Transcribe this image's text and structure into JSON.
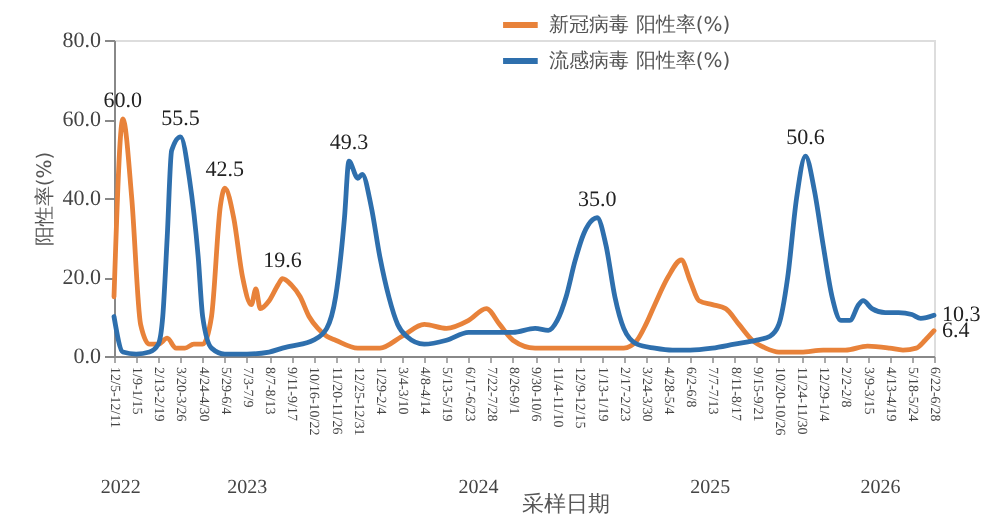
{
  "chart_data": {
    "type": "line",
    "xlabel": "采样日期",
    "ylabel": "阳性率(%)",
    "series": [
      {
        "name": "新冠病毒 阳性率(%)",
        "color": "#e8823a",
        "x": [
          "2022-12-05",
          "2022-12-19",
          "2023-01-02",
          "2023-01-16",
          "2023-01-30",
          "2023-02-13",
          "2023-02-27",
          "2023-03-13",
          "2023-03-27",
          "2023-04-10",
          "2023-04-24",
          "2023-05-08",
          "2023-05-22",
          "2023-05-29",
          "2023-06-12",
          "2023-06-26",
          "2023-07-10",
          "2023-07-17",
          "2023-07-24",
          "2023-08-07",
          "2023-08-21",
          "2023-08-28",
          "2023-09-11",
          "2023-09-25",
          "2023-10-09",
          "2023-10-23",
          "2023-11-06",
          "2023-11-20",
          "2023-12-25",
          "2024-01-29",
          "2024-03-04",
          "2024-04-08",
          "2024-05-13",
          "2024-06-17",
          "2024-07-15",
          "2024-08-05",
          "2024-08-26",
          "2024-09-30",
          "2024-11-04",
          "2024-12-09",
          "2025-01-13",
          "2025-02-17",
          "2025-03-10",
          "2025-03-24",
          "2025-04-07",
          "2025-04-28",
          "2025-05-19",
          "2025-06-02",
          "2025-06-16",
          "2025-07-07",
          "2025-07-28",
          "2025-08-18",
          "2025-09-08",
          "2025-09-29",
          "2025-10-20",
          "2025-11-24",
          "2025-12-29",
          "2026-02-02",
          "2026-03-09",
          "2026-04-13",
          "2026-05-04",
          "2026-05-25",
          "2026-06-08",
          "2026-06-22"
        ],
        "values": [
          15,
          60,
          40,
          8,
          3,
          3,
          4.5,
          2,
          2,
          3,
          3,
          10,
          38,
          42.5,
          35,
          20,
          13,
          17,
          12,
          14,
          18,
          19.6,
          18,
          15,
          10,
          7,
          5,
          4,
          2,
          2,
          5,
          8,
          7,
          9,
          12,
          8,
          4,
          2,
          2,
          2,
          2,
          2,
          4,
          8,
          13,
          20,
          24.3,
          19,
          14,
          13,
          12,
          8,
          4,
          2,
          1,
          1,
          1.5,
          1.5,
          2.5,
          2,
          1.5,
          2,
          4,
          6.4
        ]
      },
      {
        "name": "流感病毒 阳性率(%)",
        "color": "#2e6fad",
        "x": [
          "2022-12-05",
          "2022-12-19",
          "2023-01-09",
          "2023-01-30",
          "2023-02-13",
          "2023-02-20",
          "2023-02-27",
          "2023-03-06",
          "2023-03-20",
          "2023-04-03",
          "2023-04-17",
          "2023-04-24",
          "2023-05-08",
          "2023-05-29",
          "2023-07-03",
          "2023-08-07",
          "2023-08-28",
          "2023-09-11",
          "2023-10-16",
          "2023-11-06",
          "2023-11-20",
          "2023-12-04",
          "2023-12-11",
          "2023-12-25",
          "2024-01-01",
          "2024-01-15",
          "2024-01-29",
          "2024-02-12",
          "2024-02-26",
          "2024-03-11",
          "2024-04-08",
          "2024-05-13",
          "2024-06-17",
          "2024-07-22",
          "2024-08-26",
          "2024-09-30",
          "2024-10-21",
          "2024-11-04",
          "2024-11-18",
          "2024-12-02",
          "2024-12-16",
          "2024-12-30",
          "2025-01-06",
          "2025-01-20",
          "2025-02-03",
          "2025-02-17",
          "2025-03-10",
          "2025-04-07",
          "2025-05-05",
          "2025-06-02",
          "2025-07-07",
          "2025-08-11",
          "2025-09-15",
          "2025-10-06",
          "2025-10-20",
          "2025-11-03",
          "2025-11-17",
          "2025-12-01",
          "2025-12-15",
          "2025-12-29",
          "2026-01-12",
          "2026-01-26",
          "2026-02-09",
          "2026-02-23",
          "2026-03-02",
          "2026-03-16",
          "2026-04-06",
          "2026-04-27",
          "2026-05-18",
          "2026-06-01",
          "2026-06-22"
        ],
        "values": [
          10,
          1,
          0.5,
          1,
          3,
          10,
          30,
          52,
          55.5,
          45,
          25,
          10,
          2,
          0.5,
          0.5,
          1,
          2,
          2.5,
          4,
          7,
          15,
          35,
          49.3,
          45,
          46,
          38,
          25,
          15,
          8,
          5,
          3,
          4,
          6,
          6,
          6,
          7,
          6.5,
          9,
          15,
          24,
          31,
          34.5,
          35.0,
          28,
          15,
          7,
          3,
          2,
          1.5,
          1.5,
          2,
          3,
          4,
          5,
          8,
          20,
          40,
          50.6,
          42,
          28,
          15,
          9,
          9,
          13,
          14,
          12,
          11,
          11,
          10.5,
          9.5,
          10.3
        ]
      }
    ],
    "xlim": [
      "2022-12-05",
      "2026-06-22"
    ],
    "xticks": [
      {
        "value": "2022-12-05",
        "label": "12/5-12/11"
      },
      {
        "value": "2023-01-09",
        "label": "1/9-1/15"
      },
      {
        "value": "2023-02-13",
        "label": "2/13-2/19"
      },
      {
        "value": "2023-03-20",
        "label": "3/20-3/26"
      },
      {
        "value": "2023-04-24",
        "label": "4/24-4/30"
      },
      {
        "value": "2023-05-29",
        "label": "5/29-6/4"
      },
      {
        "value": "2023-07-03",
        "label": "7/3-7/9"
      },
      {
        "value": "2023-08-07",
        "label": "8/7-8/13"
      },
      {
        "value": "2023-09-11",
        "label": "9/11-9/17"
      },
      {
        "value": "2023-10-16",
        "label": "10/16-10/22"
      },
      {
        "value": "2023-11-20",
        "label": "11/20-11/26"
      },
      {
        "value": "2023-12-25",
        "label": "12/25-12/31"
      },
      {
        "value": "2024-01-29",
        "label": "1/29-2/4"
      },
      {
        "value": "2024-03-04",
        "label": "3/4-3/10"
      },
      {
        "value": "2024-04-08",
        "label": "4/8-4/14"
      },
      {
        "value": "2024-05-13",
        "label": "5/13-5/19"
      },
      {
        "value": "2024-06-17",
        "label": "6/17-6/23"
      },
      {
        "value": "2024-07-22",
        "label": "7/22-7/28"
      },
      {
        "value": "2024-08-26",
        "label": "8/26-9/1"
      },
      {
        "value": "2024-09-30",
        "label": "9/30-10/6"
      },
      {
        "value": "2024-11-04",
        "label": "11/4-11/10"
      },
      {
        "value": "2024-12-09",
        "label": "12/9-12/15"
      },
      {
        "value": "2025-01-13",
        "label": "1/13-1/19"
      },
      {
        "value": "2025-02-17",
        "label": "2/17-2/23"
      },
      {
        "value": "2025-03-24",
        "label": "3/24-3/30"
      },
      {
        "value": "2025-04-28",
        "label": "4/28-5/4"
      },
      {
        "value": "2025-06-02",
        "label": "6/2-6/8"
      },
      {
        "value": "2025-07-07",
        "label": "7/7-7/13"
      },
      {
        "value": "2025-08-11",
        "label": "8/11-8/17"
      },
      {
        "value": "2025-09-15",
        "label": "9/15-9/21"
      },
      {
        "value": "2025-10-20",
        "label": "10/20-10/26"
      },
      {
        "value": "2025-11-24",
        "label": "11/24-11/30"
      },
      {
        "value": "2025-12-29",
        "label": "12/29-1/4"
      },
      {
        "value": "2026-02-02",
        "label": "2/2-2/8"
      },
      {
        "value": "2026-03-09",
        "label": "3/9-3/15"
      },
      {
        "value": "2026-04-13",
        "label": "4/13-4/19"
      },
      {
        "value": "2026-05-18",
        "label": "5/18-5/24"
      },
      {
        "value": "2026-06-22",
        "label": "6/22-6/28"
      }
    ],
    "x2lim": [
      "2022-12-05",
      "2026-06-22"
    ],
    "x2ticks": [
      {
        "value": "2022-12-14",
        "label": "2022"
      },
      {
        "value": "2023-07-02",
        "label": "2023"
      },
      {
        "value": "2024-07-01",
        "label": "2024"
      },
      {
        "value": "2025-07-02",
        "label": "2025"
      },
      {
        "value": "2026-03-28",
        "label": "2026"
      }
    ],
    "ylim": [
      0,
      80
    ],
    "yticks": [
      {
        "value": 0,
        "label": "0.0"
      },
      {
        "value": 20,
        "label": "20.0"
      },
      {
        "value": 40,
        "label": "40.0"
      },
      {
        "value": 60,
        "label": "60.0"
      },
      {
        "value": 80,
        "label": "80.0"
      }
    ],
    "annotations": [
      {
        "text": "60.0",
        "x": "2022-12-19",
        "y": 60
      },
      {
        "text": "55.5",
        "x": "2023-03-20",
        "y": 55.5
      },
      {
        "text": "42.5",
        "x": "2023-05-29",
        "y": 42.5
      },
      {
        "text": "19.6",
        "x": "2023-08-28",
        "y": 19.6
      },
      {
        "text": "49.3",
        "x": "2023-12-11",
        "y": 49.3
      },
      {
        "text": "35.0",
        "x": "2025-01-06",
        "y": 35.0
      },
      {
        "text": "50.6",
        "x": "2025-12-01",
        "y": 50.6
      },
      {
        "text": "10.3",
        "x": "2026-06-22",
        "y": 10.3
      },
      {
        "text": "6.4",
        "x": "2026-06-22",
        "y": 6.4
      }
    ],
    "legend": "top",
    "grid": false,
    "line_style": "solid"
  }
}
